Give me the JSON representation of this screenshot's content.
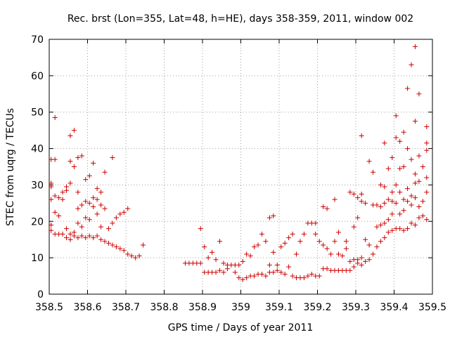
{
  "chart_data": {
    "type": "scatter",
    "title": "Rec. brst (Lon=355, Lat=48, h=HE), days 358-359, 2011, window 002",
    "xlabel": "GPS time / Days of year 2011",
    "ylabel": "STEC from uqrg / TECUs",
    "xlim": [
      358.5,
      359.5
    ],
    "ylim": [
      0,
      70
    ],
    "xticks": [
      "358.5",
      "358.6",
      "358.7",
      "358.8",
      "358.9",
      "359",
      "359.1",
      "359.2",
      "359.3",
      "359.4",
      "359.5"
    ],
    "yticks": [
      "0",
      "10",
      "20",
      "30",
      "40",
      "50",
      "60",
      "70"
    ],
    "grid": true,
    "marker": "+",
    "color": "#cc0000",
    "series": [
      {
        "name": "STEC",
        "points": [
          [
            358.505,
            17.5
          ],
          [
            358.505,
            19.0
          ],
          [
            358.505,
            29.5
          ],
          [
            358.505,
            30.5
          ],
          [
            358.505,
            37.0
          ],
          [
            358.505,
            26.0
          ],
          [
            358.515,
            16.5
          ],
          [
            358.515,
            22.5
          ],
          [
            358.515,
            27.0
          ],
          [
            358.515,
            37.0
          ],
          [
            358.515,
            48.5
          ],
          [
            358.525,
            16.5
          ],
          [
            358.525,
            21.5
          ],
          [
            358.525,
            26.5
          ],
          [
            358.535,
            16.5
          ],
          [
            358.535,
            26.0
          ],
          [
            358.535,
            28.0
          ],
          [
            358.545,
            15.5
          ],
          [
            358.545,
            18.0
          ],
          [
            358.545,
            28.5
          ],
          [
            358.545,
            29.5
          ],
          [
            358.555,
            15.0
          ],
          [
            358.555,
            16.5
          ],
          [
            358.555,
            30.5
          ],
          [
            358.555,
            36.5
          ],
          [
            358.555,
            43.5
          ],
          [
            358.565,
            16.0
          ],
          [
            358.565,
            17.0
          ],
          [
            358.565,
            35.0
          ],
          [
            358.565,
            45.0
          ],
          [
            358.575,
            15.5
          ],
          [
            358.575,
            19.5
          ],
          [
            358.575,
            23.5
          ],
          [
            358.575,
            28.0
          ],
          [
            358.575,
            37.5
          ],
          [
            358.585,
            16.0
          ],
          [
            358.585,
            18.5
          ],
          [
            358.585,
            24.5
          ],
          [
            358.585,
            38.0
          ],
          [
            358.595,
            15.5
          ],
          [
            358.595,
            21.0
          ],
          [
            358.595,
            25.5
          ],
          [
            358.595,
            31.5
          ],
          [
            358.605,
            16.0
          ],
          [
            358.605,
            20.5
          ],
          [
            358.605,
            25.0
          ],
          [
            358.605,
            32.5
          ],
          [
            358.615,
            15.5
          ],
          [
            358.615,
            24.0
          ],
          [
            358.615,
            26.5
          ],
          [
            358.615,
            36.0
          ],
          [
            358.625,
            16.0
          ],
          [
            358.625,
            22.0
          ],
          [
            358.625,
            26.0
          ],
          [
            358.625,
            29.0
          ],
          [
            358.635,
            15.0
          ],
          [
            358.635,
            18.5
          ],
          [
            358.635,
            24.5
          ],
          [
            358.635,
            28.0
          ],
          [
            358.645,
            14.5
          ],
          [
            358.645,
            23.5
          ],
          [
            358.645,
            33.5
          ],
          [
            358.655,
            14.0
          ],
          [
            358.655,
            18.0
          ],
          [
            358.665,
            13.5
          ],
          [
            358.665,
            19.5
          ],
          [
            358.665,
            37.5
          ],
          [
            358.675,
            13.0
          ],
          [
            358.675,
            21.0
          ],
          [
            358.685,
            12.5
          ],
          [
            358.685,
            22.0
          ],
          [
            358.695,
            12.0
          ],
          [
            358.695,
            22.5
          ],
          [
            358.705,
            11.0
          ],
          [
            358.705,
            23.5
          ],
          [
            358.715,
            10.5
          ],
          [
            358.725,
            10.0
          ],
          [
            358.735,
            10.5
          ],
          [
            358.745,
            13.5
          ],
          [
            358.855,
            8.5
          ],
          [
            358.865,
            8.5
          ],
          [
            358.875,
            8.5
          ],
          [
            358.885,
            8.5
          ],
          [
            358.895,
            8.5
          ],
          [
            358.895,
            18.0
          ],
          [
            358.905,
            6.0
          ],
          [
            358.905,
            13.0
          ],
          [
            358.915,
            6.0
          ],
          [
            358.915,
            10.0
          ],
          [
            358.925,
            6.0
          ],
          [
            358.925,
            11.5
          ],
          [
            358.935,
            6.0
          ],
          [
            358.935,
            9.5
          ],
          [
            358.945,
            6.5
          ],
          [
            358.945,
            14.5
          ],
          [
            358.955,
            6.0
          ],
          [
            358.955,
            8.5
          ],
          [
            358.965,
            7.0
          ],
          [
            358.965,
            8.0
          ],
          [
            358.975,
            8.0
          ],
          [
            358.985,
            6.0
          ],
          [
            358.985,
            8.0
          ],
          [
            358.995,
            4.5
          ],
          [
            358.995,
            8.0
          ],
          [
            359.005,
            4.0
          ],
          [
            359.005,
            9.0
          ],
          [
            359.015,
            4.5
          ],
          [
            359.015,
            11.0
          ],
          [
            359.025,
            5.0
          ],
          [
            359.025,
            10.5
          ],
          [
            359.035,
            5.0
          ],
          [
            359.035,
            13.0
          ],
          [
            359.045,
            5.5
          ],
          [
            359.045,
            13.5
          ],
          [
            359.055,
            5.5
          ],
          [
            359.055,
            16.5
          ],
          [
            359.065,
            5.0
          ],
          [
            359.065,
            14.5
          ],
          [
            359.075,
            6.0
          ],
          [
            359.075,
            8.0
          ],
          [
            359.075,
            21.0
          ],
          [
            359.085,
            6.0
          ],
          [
            359.085,
            11.5
          ],
          [
            359.085,
            21.5
          ],
          [
            359.095,
            6.5
          ],
          [
            359.095,
            8.0
          ],
          [
            359.105,
            6.0
          ],
          [
            359.105,
            13.0
          ],
          [
            359.115,
            5.5
          ],
          [
            359.115,
            14.0
          ],
          [
            359.125,
            7.5
          ],
          [
            359.125,
            15.5
          ],
          [
            359.135,
            5.0
          ],
          [
            359.135,
            16.5
          ],
          [
            359.145,
            4.5
          ],
          [
            359.145,
            11.0
          ],
          [
            359.155,
            4.5
          ],
          [
            359.155,
            14.5
          ],
          [
            359.165,
            4.5
          ],
          [
            359.165,
            16.5
          ],
          [
            359.175,
            5.0
          ],
          [
            359.175,
            19.5
          ],
          [
            359.185,
            5.5
          ],
          [
            359.185,
            19.5
          ],
          [
            359.195,
            5.0
          ],
          [
            359.195,
            19.5
          ],
          [
            359.195,
            16.5
          ],
          [
            359.205,
            5.0
          ],
          [
            359.205,
            14.5
          ],
          [
            359.215,
            7.0
          ],
          [
            359.215,
            13.5
          ],
          [
            359.215,
            24.0
          ],
          [
            359.225,
            7.0
          ],
          [
            359.225,
            12.5
          ],
          [
            359.225,
            23.5
          ],
          [
            359.235,
            6.5
          ],
          [
            359.235,
            11.0
          ],
          [
            359.245,
            6.5
          ],
          [
            359.245,
            14.5
          ],
          [
            359.245,
            26.0
          ],
          [
            359.255,
            6.5
          ],
          [
            359.255,
            11.0
          ],
          [
            359.255,
            17.0
          ],
          [
            359.265,
            6.5
          ],
          [
            359.265,
            10.5
          ],
          [
            359.275,
            6.5
          ],
          [
            359.275,
            12.5
          ],
          [
            359.275,
            14.5
          ],
          [
            359.285,
            6.5
          ],
          [
            359.285,
            9.0
          ],
          [
            359.285,
            28.0
          ],
          [
            359.295,
            7.5
          ],
          [
            359.295,
            9.5
          ],
          [
            359.295,
            18.5
          ],
          [
            359.295,
            27.5
          ],
          [
            359.305,
            8.5
          ],
          [
            359.305,
            9.5
          ],
          [
            359.305,
            21.0
          ],
          [
            359.305,
            26.5
          ],
          [
            359.315,
            8.0
          ],
          [
            359.315,
            10.0
          ],
          [
            359.315,
            25.5
          ],
          [
            359.315,
            43.5
          ],
          [
            359.315,
            27.5
          ],
          [
            359.325,
            9.0
          ],
          [
            359.325,
            15.0
          ],
          [
            359.325,
            25.0
          ],
          [
            359.335,
            9.5
          ],
          [
            359.335,
            13.5
          ],
          [
            359.335,
            36.5
          ],
          [
            359.345,
            11.0
          ],
          [
            359.345,
            24.5
          ],
          [
            359.345,
            33.5
          ],
          [
            359.355,
            13.0
          ],
          [
            359.355,
            18.5
          ],
          [
            359.355,
            24.5
          ],
          [
            359.365,
            14.5
          ],
          [
            359.365,
            19.0
          ],
          [
            359.365,
            24.0
          ],
          [
            359.365,
            30.0
          ],
          [
            359.375,
            15.5
          ],
          [
            359.375,
            19.5
          ],
          [
            359.375,
            25.0
          ],
          [
            359.375,
            41.5
          ],
          [
            359.375,
            29.5
          ],
          [
            359.385,
            17.0
          ],
          [
            359.385,
            20.5
          ],
          [
            359.385,
            26.0
          ],
          [
            359.385,
            34.5
          ],
          [
            359.395,
            17.5
          ],
          [
            359.395,
            22.0
          ],
          [
            359.395,
            25.5
          ],
          [
            359.395,
            28.0
          ],
          [
            359.395,
            37.5
          ],
          [
            359.405,
            18.0
          ],
          [
            359.405,
            25.0
          ],
          [
            359.405,
            30.0
          ],
          [
            359.405,
            43.0
          ],
          [
            359.405,
            49.0
          ],
          [
            359.415,
            18.0
          ],
          [
            359.415,
            22.0
          ],
          [
            359.415,
            28.0
          ],
          [
            359.415,
            34.5
          ],
          [
            359.415,
            42.0
          ],
          [
            359.425,
            17.5
          ],
          [
            359.425,
            23.0
          ],
          [
            359.425,
            26.0
          ],
          [
            359.425,
            35.0
          ],
          [
            359.425,
            44.5
          ],
          [
            359.435,
            18.0
          ],
          [
            359.435,
            25.5
          ],
          [
            359.435,
            29.0
          ],
          [
            359.435,
            40.0
          ],
          [
            359.435,
            56.5
          ],
          [
            359.445,
            19.5
          ],
          [
            359.445,
            24.5
          ],
          [
            359.445,
            27.0
          ],
          [
            359.445,
            37.0
          ],
          [
            359.445,
            63.0
          ],
          [
            359.455,
            19.0
          ],
          [
            359.455,
            26.5
          ],
          [
            359.455,
            30.5
          ],
          [
            359.455,
            33.0
          ],
          [
            359.455,
            47.5
          ],
          [
            359.455,
            68.0
          ],
          [
            359.465,
            21.0
          ],
          [
            359.465,
            24.0
          ],
          [
            359.465,
            31.0
          ],
          [
            359.465,
            38.0
          ],
          [
            359.465,
            55.0
          ],
          [
            359.475,
            21.5
          ],
          [
            359.475,
            25.5
          ],
          [
            359.475,
            35.0
          ],
          [
            359.485,
            20.5
          ],
          [
            359.485,
            28.0
          ],
          [
            359.485,
            39.5
          ],
          [
            359.485,
            41.5
          ],
          [
            359.485,
            46.0
          ],
          [
            359.485,
            32.0
          ]
        ]
      }
    ]
  }
}
